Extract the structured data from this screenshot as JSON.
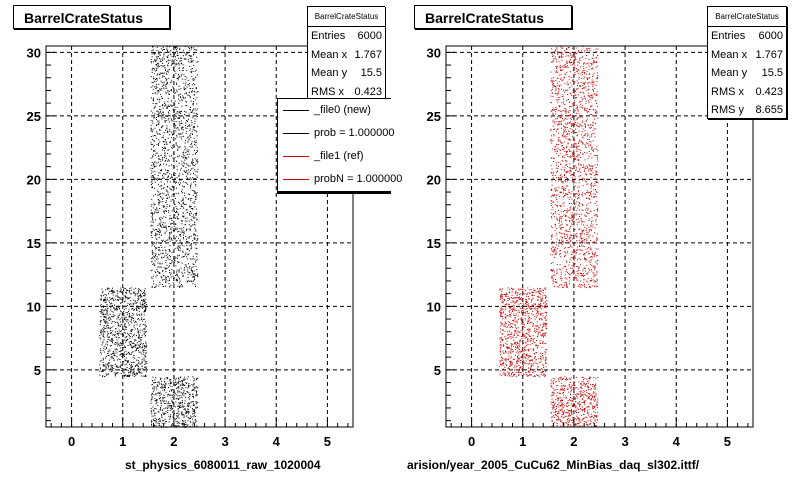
{
  "panels": [
    {
      "title": "BarrelCrateStatus",
      "stats": {
        "name": "BarrelCrateStatus",
        "rows": [
          {
            "label": "Entries",
            "value": "6000"
          },
          {
            "label": "Mean x",
            "value": "1.767"
          },
          {
            "label": "Mean y",
            "value": "15.5"
          },
          {
            "label": "RMS x",
            "value": "0.423"
          }
        ]
      },
      "xtitle": "st_physics_6080011_raw_1020004",
      "legend": [
        {
          "label": "_file0 (new)",
          "color": "#000000"
        },
        {
          "label": "prob = 1.000000",
          "color": "#000000"
        },
        {
          "label": "_file1 (ref)",
          "color": "#cc0000"
        },
        {
          "label": "probN = 1.000000",
          "color": "#cc0000"
        }
      ]
    },
    {
      "title": "BarrelCrateStatus",
      "stats": {
        "name": "BarrelCrateStatus",
        "rows": [
          {
            "label": "Entries",
            "value": "6000"
          },
          {
            "label": "Mean x",
            "value": "1.767"
          },
          {
            "label": "Mean y",
            "value": "15.5"
          },
          {
            "label": "RMS x",
            "value": "0.423"
          },
          {
            "label": "RMS y",
            "value": "8.655"
          }
        ]
      },
      "xtitle": "arision/year_2005_CuCu62_MinBias_daq_sl302.ittf/"
    }
  ],
  "chart_data": [
    {
      "type": "scatter",
      "title": "BarrelCrateStatus",
      "xlabel": "st_physics_6080011_raw_1020004",
      "ylabel": "",
      "xlim": [
        -0.5,
        5.5
      ],
      "ylim": [
        0.5,
        30.5
      ],
      "xticks": [
        0,
        1,
        2,
        3,
        4,
        5
      ],
      "yticks": [
        5,
        10,
        15,
        20,
        25,
        30
      ],
      "grid": true,
      "marker_color": "#000000",
      "regions": [
        {
          "x": [
            1.5,
            2.5
          ],
          "y": [
            0.5,
            4.5
          ]
        },
        {
          "x": [
            0.5,
            1.5
          ],
          "y": [
            4.5,
            11.5
          ]
        },
        {
          "x": [
            1.5,
            2.5
          ],
          "y": [
            11.5,
            30.5
          ]
        }
      ],
      "entries": 6000
    },
    {
      "type": "scatter",
      "title": "BarrelCrateStatus",
      "xlabel": "arision/year_2005_CuCu62_MinBias_daq_sl302.ittf/",
      "ylabel": "",
      "xlim": [
        -0.5,
        5.5
      ],
      "ylim": [
        0.5,
        30.5
      ],
      "xticks": [
        0,
        1,
        2,
        3,
        4,
        5
      ],
      "yticks": [
        5,
        10,
        15,
        20,
        25,
        30
      ],
      "grid": true,
      "marker_color": "#cc0000",
      "regions": [
        {
          "x": [
            1.5,
            2.5
          ],
          "y": [
            0.5,
            4.5
          ]
        },
        {
          "x": [
            0.5,
            1.5
          ],
          "y": [
            4.5,
            11.5
          ]
        },
        {
          "x": [
            1.5,
            2.5
          ],
          "y": [
            11.5,
            30.5
          ]
        }
      ],
      "entries": 6000
    }
  ]
}
